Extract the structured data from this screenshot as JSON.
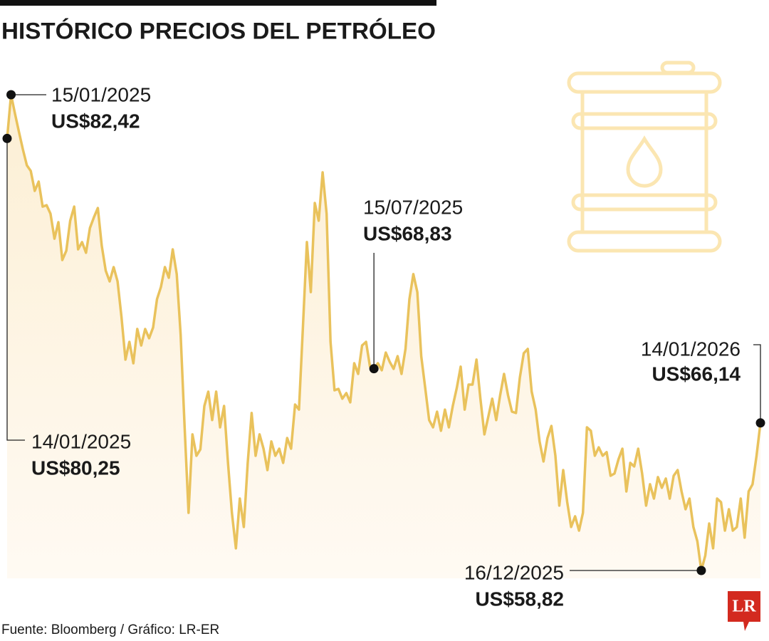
{
  "chart_data": {
    "type": "line",
    "title": "HISTÓRICO PRECIOS DEL PETRÓLEO",
    "source": "Fuente: Bloomberg / Gráfico: LR-ER",
    "logo": "LR",
    "color": "#e9c25c",
    "categories": [
      "14/01/2025",
      "15/01/2025",
      null,
      null,
      null,
      null,
      null,
      null,
      null,
      null,
      null,
      null,
      null,
      null,
      null,
      null,
      null,
      null,
      null,
      null,
      null,
      null,
      null,
      null,
      null,
      null,
      null,
      null,
      null,
      null,
      null,
      null,
      null,
      null,
      null,
      null,
      null,
      null,
      null,
      null,
      null,
      null,
      null,
      null,
      null,
      null,
      null,
      null,
      null,
      null,
      null,
      null,
      null,
      null,
      null,
      null,
      null,
      null,
      null,
      null,
      null,
      null,
      null,
      null,
      null,
      null,
      null,
      null,
      null,
      null,
      null,
      null,
      null,
      null,
      null,
      null,
      null,
      null,
      null,
      null,
      null,
      null,
      null,
      null,
      null,
      null,
      null,
      null,
      null,
      null,
      null,
      null,
      null,
      "15/07/2025",
      null,
      null,
      null,
      null,
      null,
      null,
      null,
      null,
      null,
      null,
      null,
      null,
      null,
      null,
      null,
      null,
      null,
      null,
      null,
      null,
      null,
      null,
      null,
      null,
      null,
      null,
      null,
      null,
      null,
      null,
      null,
      null,
      null,
      null,
      null,
      null,
      null,
      null,
      null,
      null,
      null,
      null,
      null,
      null,
      null,
      null,
      null,
      null,
      null,
      null,
      null,
      null,
      null,
      null,
      null,
      null,
      null,
      null,
      null,
      null,
      null,
      null,
      null,
      null,
      null,
      null,
      null,
      null,
      null,
      null,
      null,
      null,
      null,
      null,
      null,
      null,
      null,
      null,
      null,
      null,
      null,
      null,
      "16/12/2025",
      null,
      null,
      null,
      null,
      null,
      null,
      null,
      null,
      null,
      null,
      null,
      null,
      null,
      null,
      "14/01/2026"
    ],
    "values": [
      80.25,
      82.42,
      81.47,
      80.58,
      79.7,
      78.92,
      78.64,
      77.65,
      78.11,
      76.87,
      76.94,
      76.52,
      75.28,
      76.1,
      74.22,
      74.68,
      76.17,
      76.87,
      74.75,
      75.11,
      74.58,
      75.81,
      76.34,
      76.8,
      74.93,
      73.69,
      73.16,
      73.87,
      73.16,
      71.4,
      69.28,
      70.16,
      69.1,
      70.8,
      69.98,
      70.8,
      70.34,
      70.87,
      72.28,
      72.88,
      73.87,
      73.34,
      74.75,
      73.52,
      70.52,
      65.92,
      61.68,
      65.57,
      64.51,
      64.83,
      66.98,
      67.69,
      66.28,
      67.69,
      65.92,
      66.98,
      64.16,
      61.68,
      59.92,
      62.39,
      60.98,
      64.16,
      66.63,
      64.51,
      65.57,
      64.86,
      63.8,
      65.22,
      64.51,
      64.86,
      64.16,
      65.39,
      64.86,
      67.05,
      66.8,
      70.87,
      75.11,
      72.63,
      77.05,
      76.17,
      78.57,
      76.52,
      70.16,
      67.76,
      67.83,
      67.34,
      67.62,
      67.16,
      69.1,
      68.57,
      69.98,
      70.16,
      68.93,
      68.83,
      69.1,
      68.75,
      69.63,
      69.17,
      68.82,
      69.45,
      68.57,
      69.81,
      72.28,
      73.52,
      72.63,
      69.45,
      67.87,
      66.28,
      65.92,
      66.7,
      65.75,
      66.8,
      65.92,
      66.98,
      67.87,
      68.93,
      66.8,
      68.04,
      68.04,
      69.28,
      67.34,
      65.57,
      66.45,
      67.34,
      66.28,
      67.51,
      68.57,
      67.51,
      66.7,
      66.63,
      68.39,
      69.6,
      69.81,
      67.69,
      66.8,
      65.22,
      64.23,
      65.39,
      65.99,
      64.51,
      62.04,
      63.8,
      62.21,
      60.98,
      61.51,
      60.8,
      61.68,
      65.92,
      65.75,
      64.51,
      64.93,
      64.51,
      64.69,
      63.52,
      63.63,
      64.33,
      64.86,
      62.74,
      64.16,
      63.98,
      64.86,
      63.63,
      62.04,
      63.1,
      62.39,
      63.45,
      62.92,
      63.38,
      62.39,
      63.52,
      63.8,
      62.74,
      61.86,
      62.39,
      60.98,
      60.27,
      58.82,
      59.56,
      61.15,
      59.92,
      62.39,
      62.21,
      60.8,
      61.86,
      60.8,
      60.98,
      62.39,
      60.45,
      62.74,
      63.1,
      64.51,
      66.14
    ],
    "value_labels": [
      "US$80,25",
      "US$82,42",
      null,
      null,
      null,
      null,
      null,
      null,
      null,
      null,
      null,
      null,
      null,
      null,
      null,
      null,
      null,
      null,
      null,
      null,
      null,
      null,
      null,
      null,
      null,
      null,
      null,
      null,
      null,
      null,
      null,
      null,
      null,
      null,
      null,
      null,
      null,
      null,
      null,
      null,
      null,
      null,
      null,
      null,
      null,
      null,
      null,
      null,
      null,
      null,
      null,
      null,
      null,
      null,
      null,
      null,
      null,
      null,
      null,
      null,
      null,
      null,
      null,
      null,
      null,
      null,
      null,
      null,
      null,
      null,
      null,
      null,
      null,
      null,
      null,
      null,
      null,
      null,
      null,
      null,
      null,
      null,
      null,
      null,
      null,
      null,
      null,
      null,
      null,
      null,
      null,
      null,
      null,
      "US$68,83",
      null,
      null,
      null,
      null,
      null,
      null,
      null,
      null,
      null,
      null,
      null,
      null,
      null,
      null,
      null,
      null,
      null,
      null,
      null,
      null,
      null,
      null,
      null,
      null,
      null,
      null,
      null,
      null,
      null,
      null,
      null,
      null,
      null,
      null,
      null,
      null,
      null,
      null,
      null,
      null,
      null,
      null,
      null,
      null,
      null,
      null,
      null,
      null,
      null,
      null,
      null,
      null,
      null,
      null,
      null,
      null,
      null,
      null,
      null,
      null,
      null,
      null,
      null,
      null,
      null,
      null,
      null,
      null,
      null,
      null,
      null,
      null,
      null,
      null,
      null,
      null,
      null,
      null,
      null,
      null,
      null,
      null,
      "US$58,82",
      null,
      null,
      null,
      null,
      null,
      null,
      null,
      null,
      null,
      null,
      null,
      null,
      null,
      null,
      "US$66,14"
    ]
  }
}
